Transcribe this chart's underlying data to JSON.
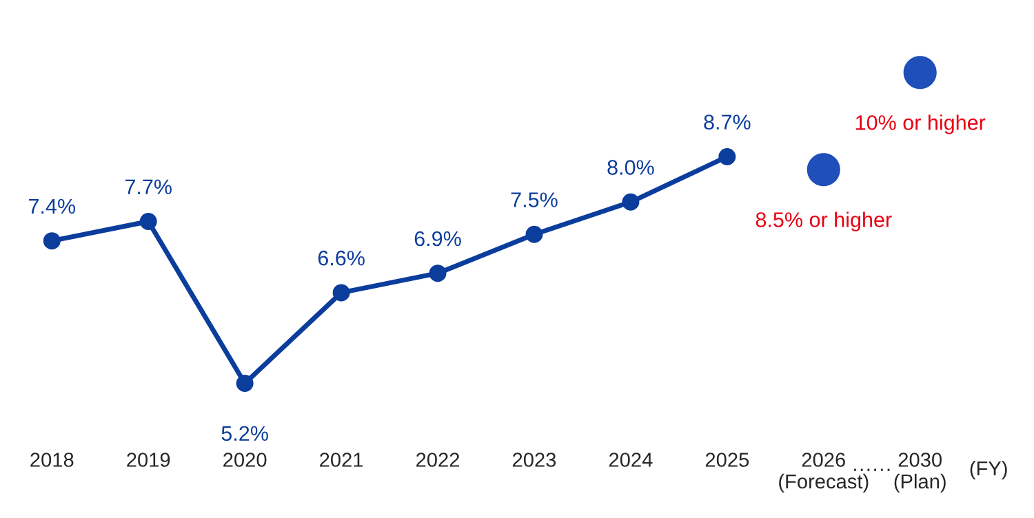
{
  "chart_data": {
    "type": "line",
    "categories": [
      "2018",
      "2019",
      "2020",
      "2021",
      "2022",
      "2023",
      "2024",
      "2025",
      "2026\n(Forecast)",
      "2030\n(Plan)"
    ],
    "xlabel": "(FY)",
    "series": [
      {
        "color": "#0b3d9c",
        "values": [
          7.4,
          7.7,
          5.2,
          6.6,
          6.9,
          7.5,
          8.0,
          8.7,
          null,
          null
        ],
        "value_labels": [
          "7.4%",
          "7.7%",
          "5.2%",
          "6.6%",
          "6.9%",
          "7.5%",
          "8.0%",
          "8.7%",
          null,
          null
        ]
      },
      {
        "type": "scatter",
        "color": "#1f4fb8",
        "values": [
          null,
          null,
          null,
          null,
          null,
          null,
          null,
          null,
          8.5,
          10
        ],
        "value_labels": [
          null,
          null,
          null,
          null,
          null,
          null,
          null,
          null,
          "8.5% or higher",
          "10% or higher"
        ]
      }
    ],
    "annotations": [
      "······"
    ],
    "marker": "circle",
    "line_style": "solid",
    "tick_labels": "x",
    "grid": false,
    "legend": false
  }
}
